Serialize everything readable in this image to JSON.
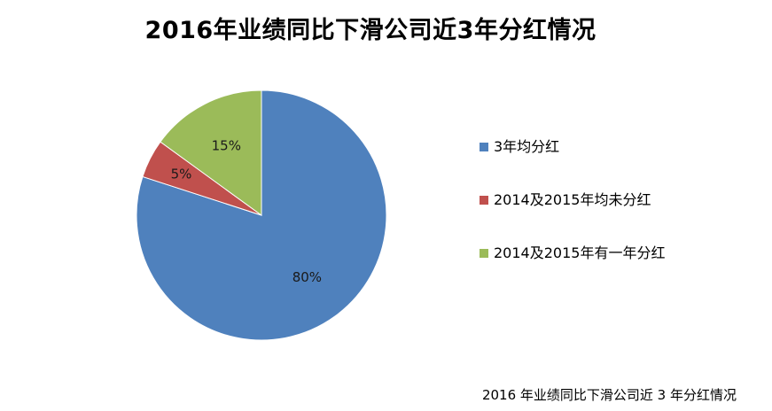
{
  "chart_data": {
    "type": "pie",
    "title": "2016年业绩同比下滑公司近3年分红情况",
    "slices": [
      {
        "label": "3年均分红",
        "value": 80,
        "display": "80%",
        "color": "#4F81BD"
      },
      {
        "label": "2014及2015年均未分红",
        "value": 5,
        "display": "5%",
        "color": "#C0504D"
      },
      {
        "label": "2014及2015年有一年分红",
        "value": 15,
        "display": "15%",
        "color": "#9BBB59"
      }
    ],
    "legend_position": "right"
  },
  "footer": {
    "caption": "2016 年业绩同比下滑公司近 3 年分红情况"
  }
}
